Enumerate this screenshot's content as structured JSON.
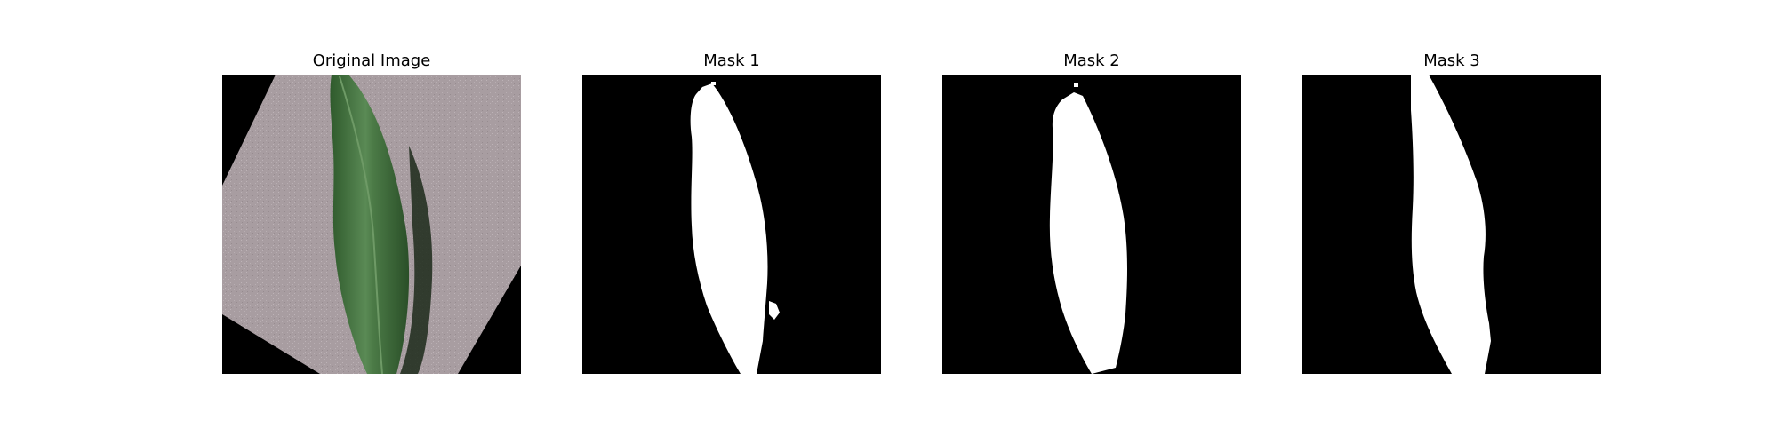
{
  "figure": {
    "panels": [
      {
        "title": "Original Image",
        "kind": "photo",
        "subject": "leaf-on-paper"
      },
      {
        "title": "Mask 1",
        "kind": "mask"
      },
      {
        "title": "Mask 2",
        "kind": "mask"
      },
      {
        "title": "Mask 3",
        "kind": "mask"
      }
    ]
  },
  "colors": {
    "background": "#ffffff",
    "mask_background": "#000000",
    "mask_foreground": "#ffffff",
    "paper": "#a89da1",
    "leaf": "#3f6b3a",
    "leaf_shadow": "#1c2a1a"
  }
}
